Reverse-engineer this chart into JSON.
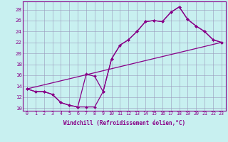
{
  "xlabel": "Windchill (Refroidissement éolien,°C)",
  "bg_color": "#c8f0f0",
  "grid_color": "#9999bb",
  "line_color": "#880088",
  "xlim": [
    -0.5,
    23.5
  ],
  "ylim": [
    9.5,
    29.5
  ],
  "xticks": [
    0,
    1,
    2,
    3,
    4,
    5,
    6,
    7,
    8,
    9,
    10,
    11,
    12,
    13,
    14,
    15,
    16,
    17,
    18,
    19,
    20,
    21,
    22,
    23
  ],
  "yticks": [
    10,
    12,
    14,
    16,
    18,
    20,
    22,
    24,
    26,
    28
  ],
  "line1_x": [
    0,
    1,
    2,
    3,
    4,
    5,
    6,
    7,
    8,
    9,
    10,
    11,
    12,
    13,
    14,
    15,
    16,
    17,
    18,
    19,
    20,
    21,
    22,
    23
  ],
  "line1_y": [
    13.5,
    13.0,
    13.0,
    12.5,
    11.0,
    10.5,
    10.2,
    10.2,
    10.2,
    13.0,
    19.0,
    21.5,
    22.5,
    24.0,
    25.8,
    26.0,
    25.8,
    27.5,
    28.5,
    26.2,
    25.0,
    24.0,
    22.5,
    22.0
  ],
  "line2_x": [
    0,
    1,
    2,
    3,
    4,
    5,
    6,
    7,
    8,
    9,
    10,
    11,
    12,
    13,
    14,
    15,
    16,
    17,
    18,
    19,
    20,
    21,
    22,
    23
  ],
  "line2_y": [
    13.5,
    13.0,
    13.0,
    12.5,
    11.0,
    10.5,
    10.2,
    16.2,
    15.8,
    13.0,
    19.0,
    21.5,
    22.5,
    24.0,
    25.8,
    26.0,
    25.8,
    27.5,
    28.5,
    26.2,
    25.0,
    24.0,
    22.5,
    22.0
  ],
  "line3_x": [
    0,
    23
  ],
  "line3_y": [
    13.5,
    22.0
  ],
  "marker": "D",
  "markersize": 2.0,
  "linewidth": 0.9,
  "tick_fontsize": 4.8,
  "xlabel_fontsize": 5.5
}
